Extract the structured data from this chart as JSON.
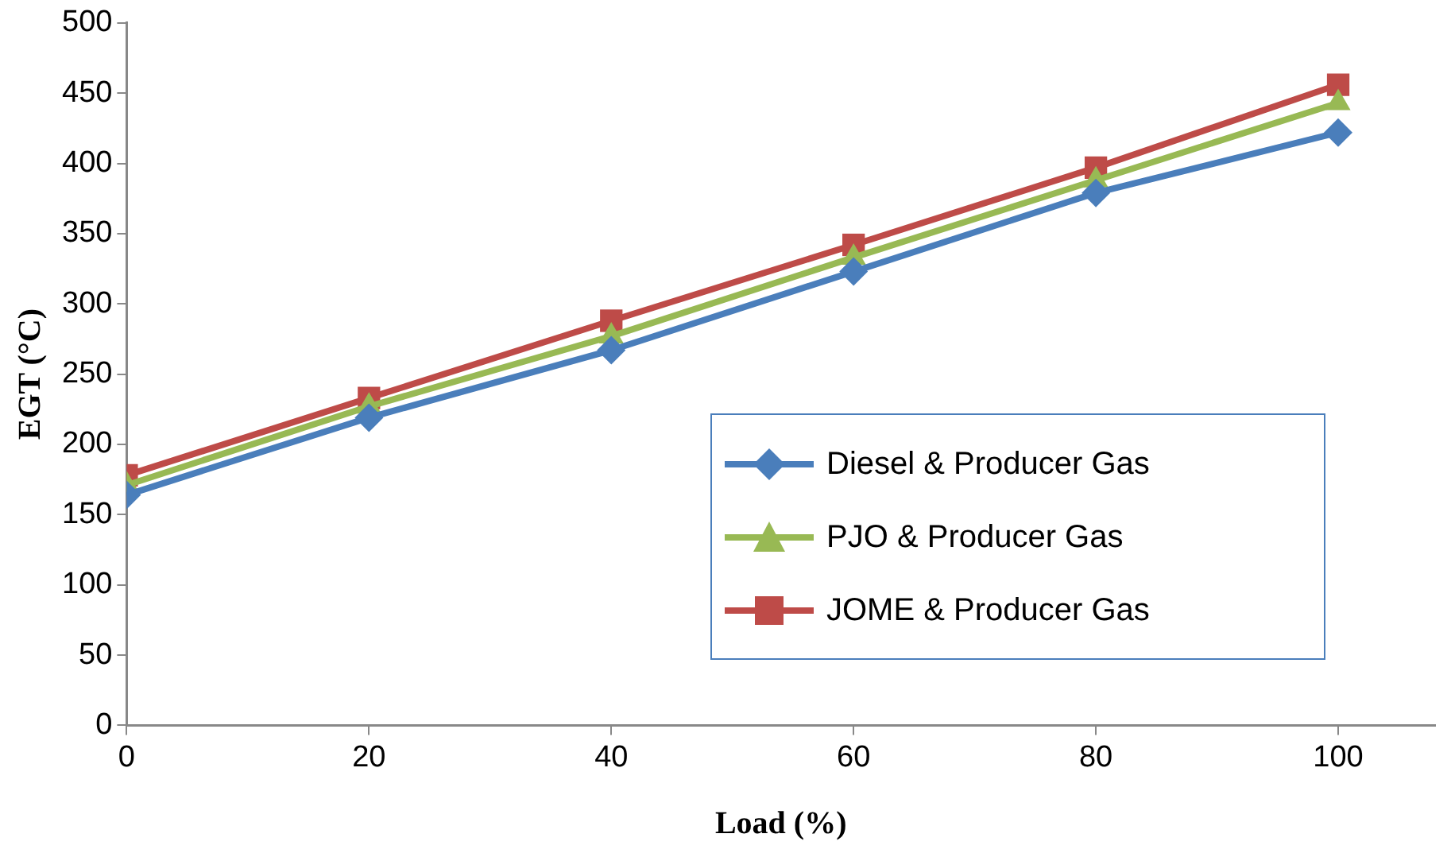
{
  "chart_data": {
    "type": "line",
    "xlabel": "Load (%)",
    "ylabel": "EGT (°C)",
    "x": [
      0,
      20,
      40,
      60,
      80,
      100
    ],
    "series": [
      {
        "name": "Diesel & Producer Gas",
        "color": "#4a7ebb",
        "marker": "diamond",
        "values": [
          164,
          219,
          267,
          323,
          379,
          422
        ]
      },
      {
        "name": "PJO & Producer Gas",
        "color": "#98b954",
        "marker": "triangle",
        "values": [
          171,
          227,
          277,
          333,
          388,
          443
        ]
      },
      {
        "name": "JOME & Producer Gas",
        "color": "#be4b48",
        "marker": "square",
        "values": [
          178,
          233,
          288,
          342,
          397,
          456
        ]
      }
    ],
    "xlim": [
      0,
      108
    ],
    "xticks": [
      0,
      20,
      40,
      60,
      80,
      100
    ],
    "ylim": [
      0,
      500
    ],
    "yticks": [
      0,
      50,
      100,
      150,
      200,
      250,
      300,
      350,
      400,
      450,
      500
    ],
    "grid": false,
    "legend": "bottom right",
    "line_style": "solid"
  }
}
